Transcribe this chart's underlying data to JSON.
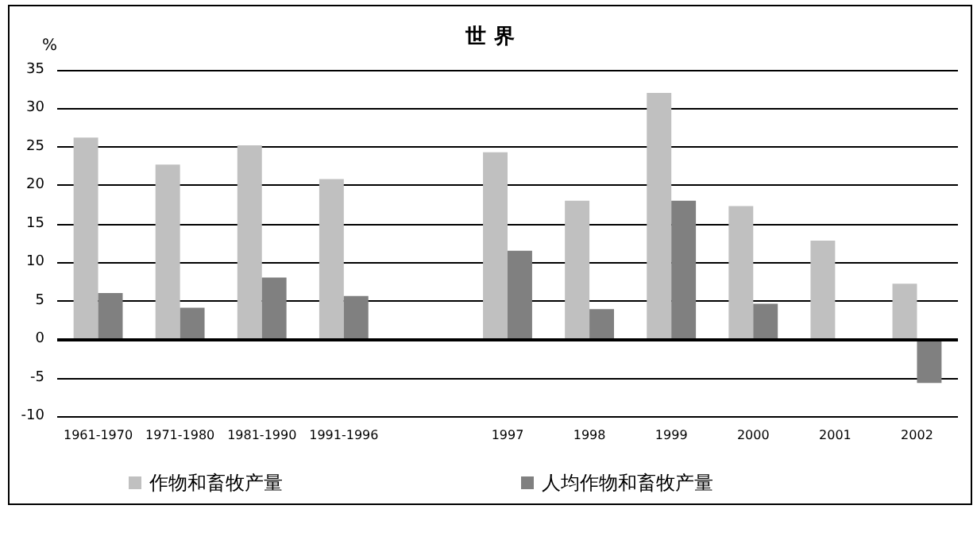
{
  "chart_data": {
    "type": "bar",
    "title": "世 界",
    "ylabel": "%",
    "categories": [
      "1961-1970",
      "1971-1980",
      "1981-1990",
      "1991-1996",
      null,
      "1997",
      "1998",
      "1999",
      "2000",
      "2001",
      "2002"
    ],
    "series": [
      {
        "name": "作物和畜牧产量",
        "color": "#c0c0c0",
        "values": [
          26.2,
          22.7,
          25.2,
          20.8,
          null,
          24.3,
          18.0,
          32.0,
          17.3,
          12.8,
          7.2
        ]
      },
      {
        "name": "人均作物和畜牧产量",
        "color": "#808080",
        "values": [
          6.0,
          4.1,
          8.0,
          5.6,
          null,
          11.5,
          3.9,
          18.0,
          4.6,
          null,
          -5.7
        ]
      }
    ],
    "ylim": [
      -10,
      35
    ],
    "yticks": [
      -10,
      -5,
      0,
      5,
      10,
      15,
      20,
      25,
      30,
      35
    ],
    "grid": "y",
    "legend": "bottom left"
  }
}
